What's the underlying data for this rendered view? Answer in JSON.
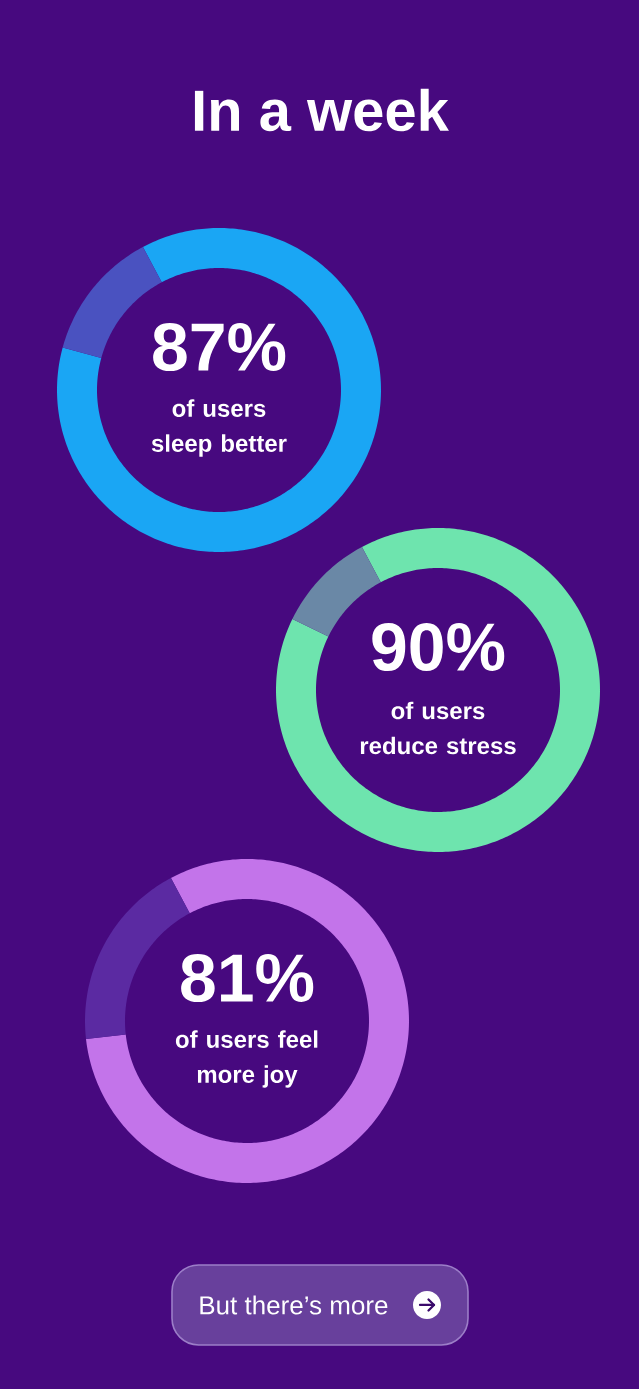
{
  "chart_data": [
    {
      "type": "donut",
      "title": "In a week",
      "categories": [
        "of users sleep better",
        null
      ],
      "values": [
        87,
        13
      ],
      "colors": [
        "#1aa6f4",
        "#4a52c0"
      ],
      "value_labels": [
        "87%",
        null
      ]
    },
    {
      "type": "donut",
      "categories": [
        "of users reduce stress",
        null
      ],
      "values": [
        90,
        10
      ],
      "colors": [
        "#6ee4ae",
        "#6a88a6"
      ],
      "value_labels": [
        "90%",
        null
      ]
    },
    {
      "type": "donut",
      "categories": [
        "of users feel more joy",
        null
      ],
      "values": [
        81,
        19
      ],
      "colors": [
        "#c374ea",
        "#5b2aa2"
      ],
      "value_labels": [
        "81%",
        null
      ],
      "annotations": [
        "But there’s more"
      ]
    }
  ]
}
